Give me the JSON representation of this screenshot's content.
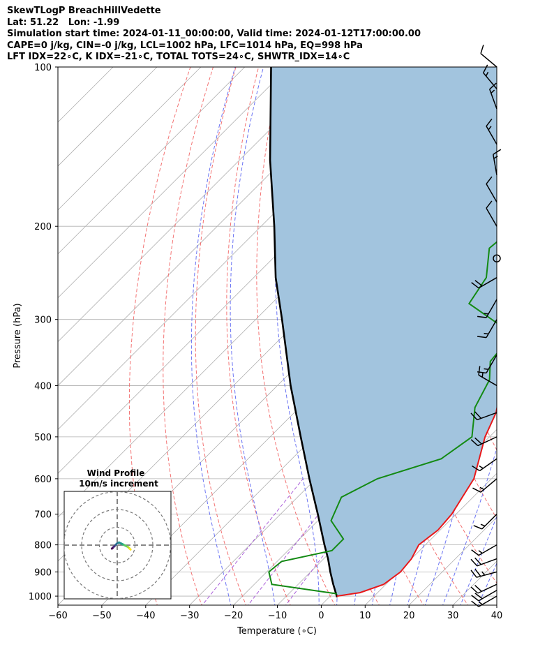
{
  "header": {
    "lines": [
      "SkewTLogP BreachHillVedette",
      "Lat: 51.22   Lon: -1.99",
      "Simulation start time: 2024-01-11_00:00:00, Valid time: 2024-01-12T17:00:00.00",
      "CAPE=0 j/kg, CIN=-0 j/kg, LCL=1002 hPa, LFC=1014 hPa, EQ=998 hPa",
      "LFT IDX=22∘C, K IDX=-21∘C, TOTAL TOTS=24∘C, SHWTR_IDX=14∘C"
    ]
  },
  "chart_data": {
    "type": "skewt-logp",
    "xlabel": "Temperature (∘C)",
    "ylabel": "Pressure (hPa)",
    "xlim": [
      -60,
      40
    ],
    "ylim": [
      1040,
      100
    ],
    "yscale": "log",
    "skew_deg": 45,
    "x_ticks": [
      -60,
      -50,
      -40,
      -30,
      -20,
      -10,
      0,
      10,
      20,
      30,
      40
    ],
    "y_ticks": [
      1000,
      900,
      800,
      700,
      600,
      500,
      400,
      300,
      200,
      100
    ],
    "grid": true,
    "colors": {
      "temperature": "#e8191b",
      "dewpoint": "#138a13",
      "parcel": "#000000",
      "cape_fill": "#a2c4de",
      "dry_adiabat": "#f26464",
      "moist_adiabat": "#5a64f2",
      "mixing_ratio": "#a24fd6",
      "isotherm": "#b0b0b0"
    },
    "temperature_profile": [
      {
        "p": 1000,
        "t": 1.5
      },
      {
        "p": 985,
        "t": 6
      },
      {
        "p": 950,
        "t": 9.5
      },
      {
        "p": 900,
        "t": 10.5
      },
      {
        "p": 850,
        "t": 10
      },
      {
        "p": 800,
        "t": 8.5
      },
      {
        "p": 750,
        "t": 9.5
      },
      {
        "p": 700,
        "t": 9
      },
      {
        "p": 600,
        "t": 6
      },
      {
        "p": 500,
        "t": -1
      },
      {
        "p": 450,
        "t": -4
      },
      {
        "p": 400,
        "t": -9
      },
      {
        "p": 330,
        "t": -17
      },
      {
        "p": 280,
        "t": -24
      },
      {
        "p": 230,
        "t": -31
      },
      {
        "p": 200,
        "t": -36
      },
      {
        "p": 180,
        "t": -38
      },
      {
        "p": 160,
        "t": -39
      },
      {
        "p": 140,
        "t": -41
      },
      {
        "p": 125,
        "t": -46
      },
      {
        "p": 110,
        "t": -54
      },
      {
        "p": 100,
        "t": -61
      }
    ],
    "dewpoint_profile": [
      {
        "p": 990,
        "t": 1
      },
      {
        "p": 950,
        "t": -16
      },
      {
        "p": 900,
        "t": -19.5
      },
      {
        "p": 860,
        "t": -19
      },
      {
        "p": 820,
        "t": -10
      },
      {
        "p": 780,
        "t": -10
      },
      {
        "p": 720,
        "t": -17
      },
      {
        "p": 650,
        "t": -20
      },
      {
        "p": 600,
        "t": -16
      },
      {
        "p": 550,
        "t": -6
      },
      {
        "p": 500,
        "t": -4
      },
      {
        "p": 440,
        "t": -10
      },
      {
        "p": 390,
        "t": -13
      },
      {
        "p": 360,
        "t": -17
      },
      {
        "p": 320,
        "t": -18
      },
      {
        "p": 280,
        "t": -35
      },
      {
        "p": 250,
        "t": -37
      },
      {
        "p": 220,
        "t": -43
      },
      {
        "p": 200,
        "t": -42
      },
      {
        "p": 180,
        "t": -40
      },
      {
        "p": 160,
        "t": -41
      },
      {
        "p": 140,
        "t": -48
      },
      {
        "p": 120,
        "t": -58
      },
      {
        "p": 100,
        "t": -66
      }
    ],
    "parcel_profile": [
      {
        "p": 1005,
        "t": 1.8
      },
      {
        "p": 1000,
        "t": 1.5
      },
      {
        "p": 950,
        "t": -2
      },
      {
        "p": 900,
        "t": -5.5
      },
      {
        "p": 850,
        "t": -9
      },
      {
        "p": 800,
        "t": -13
      },
      {
        "p": 700,
        "t": -21.5
      },
      {
        "p": 600,
        "t": -31.5
      },
      {
        "p": 500,
        "t": -43
      },
      {
        "p": 400,
        "t": -57
      },
      {
        "p": 300,
        "t": -74
      },
      {
        "p": 250,
        "t": -85
      },
      {
        "p": 200,
        "t": -97
      },
      {
        "p": 150,
        "t": -113
      },
      {
        "p": 100,
        "t": -134
      }
    ],
    "wind_barbs": [
      {
        "p": 1000,
        "speed_kt": 15,
        "dir": 240
      },
      {
        "p": 975,
        "speed_kt": 20,
        "dir": 240
      },
      {
        "p": 950,
        "speed_kt": 20,
        "dir": 245
      },
      {
        "p": 900,
        "speed_kt": 25,
        "dir": 255
      },
      {
        "p": 850,
        "speed_kt": 20,
        "dir": 250
      },
      {
        "p": 800,
        "speed_kt": 15,
        "dir": 240
      },
      {
        "p": 700,
        "speed_kt": 15,
        "dir": 225
      },
      {
        "p": 600,
        "speed_kt": 15,
        "dir": 230
      },
      {
        "p": 550,
        "speed_kt": 15,
        "dir": 235
      },
      {
        "p": 500,
        "speed_kt": 20,
        "dir": 245
      },
      {
        "p": 450,
        "speed_kt": 20,
        "dir": 250
      },
      {
        "p": 400,
        "speed_kt": 15,
        "dir": 300
      },
      {
        "p": 350,
        "speed_kt": 15,
        "dir": 210
      },
      {
        "p": 300,
        "speed_kt": 15,
        "dir": 210
      },
      {
        "p": 275,
        "speed_kt": 15,
        "dir": 210
      },
      {
        "p": 250,
        "speed_kt": 20,
        "dir": 240
      },
      {
        "p": 230,
        "speed_kt": 0,
        "dir": 0
      },
      {
        "p": 200,
        "speed_kt": 10,
        "dir": 330
      },
      {
        "p": 180,
        "speed_kt": 10,
        "dir": 330
      },
      {
        "p": 160,
        "speed_kt": 15,
        "dir": 350
      },
      {
        "p": 140,
        "speed_kt": 15,
        "dir": 330
      },
      {
        "p": 120,
        "speed_kt": 15,
        "dir": 340
      },
      {
        "p": 110,
        "speed_kt": 15,
        "dir": 320
      },
      {
        "p": 100,
        "speed_kt": 10,
        "dir": 310
      }
    ],
    "hodograph": {
      "title": "Wind Profile",
      "subtitle": "10m/s increment",
      "ring_step_ms": 10,
      "ring_count": 3,
      "points_ms": [
        [
          -3,
          -2
        ],
        [
          -2.5,
          -1.5
        ],
        [
          -2,
          -1
        ],
        [
          -1.5,
          -0.5
        ],
        [
          -1,
          0
        ],
        [
          -0.5,
          0.5
        ],
        [
          0,
          1
        ],
        [
          1,
          1.5
        ],
        [
          2,
          1
        ],
        [
          3,
          0.5
        ],
        [
          4,
          0
        ],
        [
          5,
          -0.5
        ],
        [
          6,
          -1
        ],
        [
          6.5,
          -1.5
        ],
        [
          7,
          -2
        ],
        [
          7.5,
          -2.5
        ]
      ]
    }
  }
}
